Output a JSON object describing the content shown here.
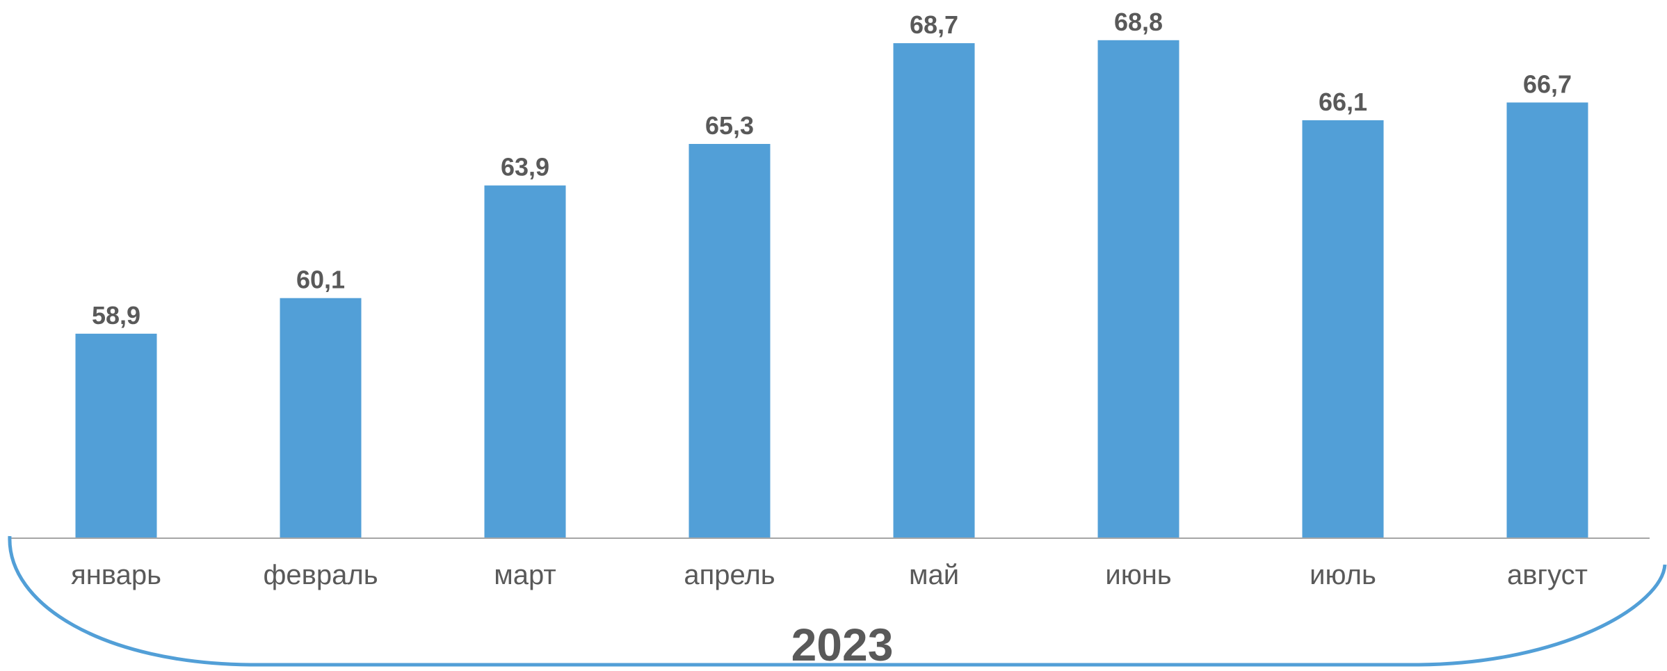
{
  "chart_data": {
    "type": "bar",
    "title": "",
    "xlabel": "",
    "ylabel": "",
    "group_label": "2023",
    "categories": [
      "январь",
      "февраль",
      "март",
      "апрель",
      "май",
      "июнь",
      "июль",
      "август"
    ],
    "values": [
      58.9,
      60.1,
      63.9,
      65.3,
      68.7,
      68.8,
      66.1,
      66.7
    ],
    "value_labels": [
      "58,9",
      "60,1",
      "63,9",
      "65,3",
      "68,7",
      "68,8",
      "66,1",
      "66,7"
    ],
    "ylim": [
      52.0,
      69.5
    ],
    "grid": false,
    "legend": "none",
    "colors": {
      "bar": "#529fd7",
      "axis": "#a6a6a6",
      "bracket": "#529fd7",
      "text": "#595959"
    }
  }
}
